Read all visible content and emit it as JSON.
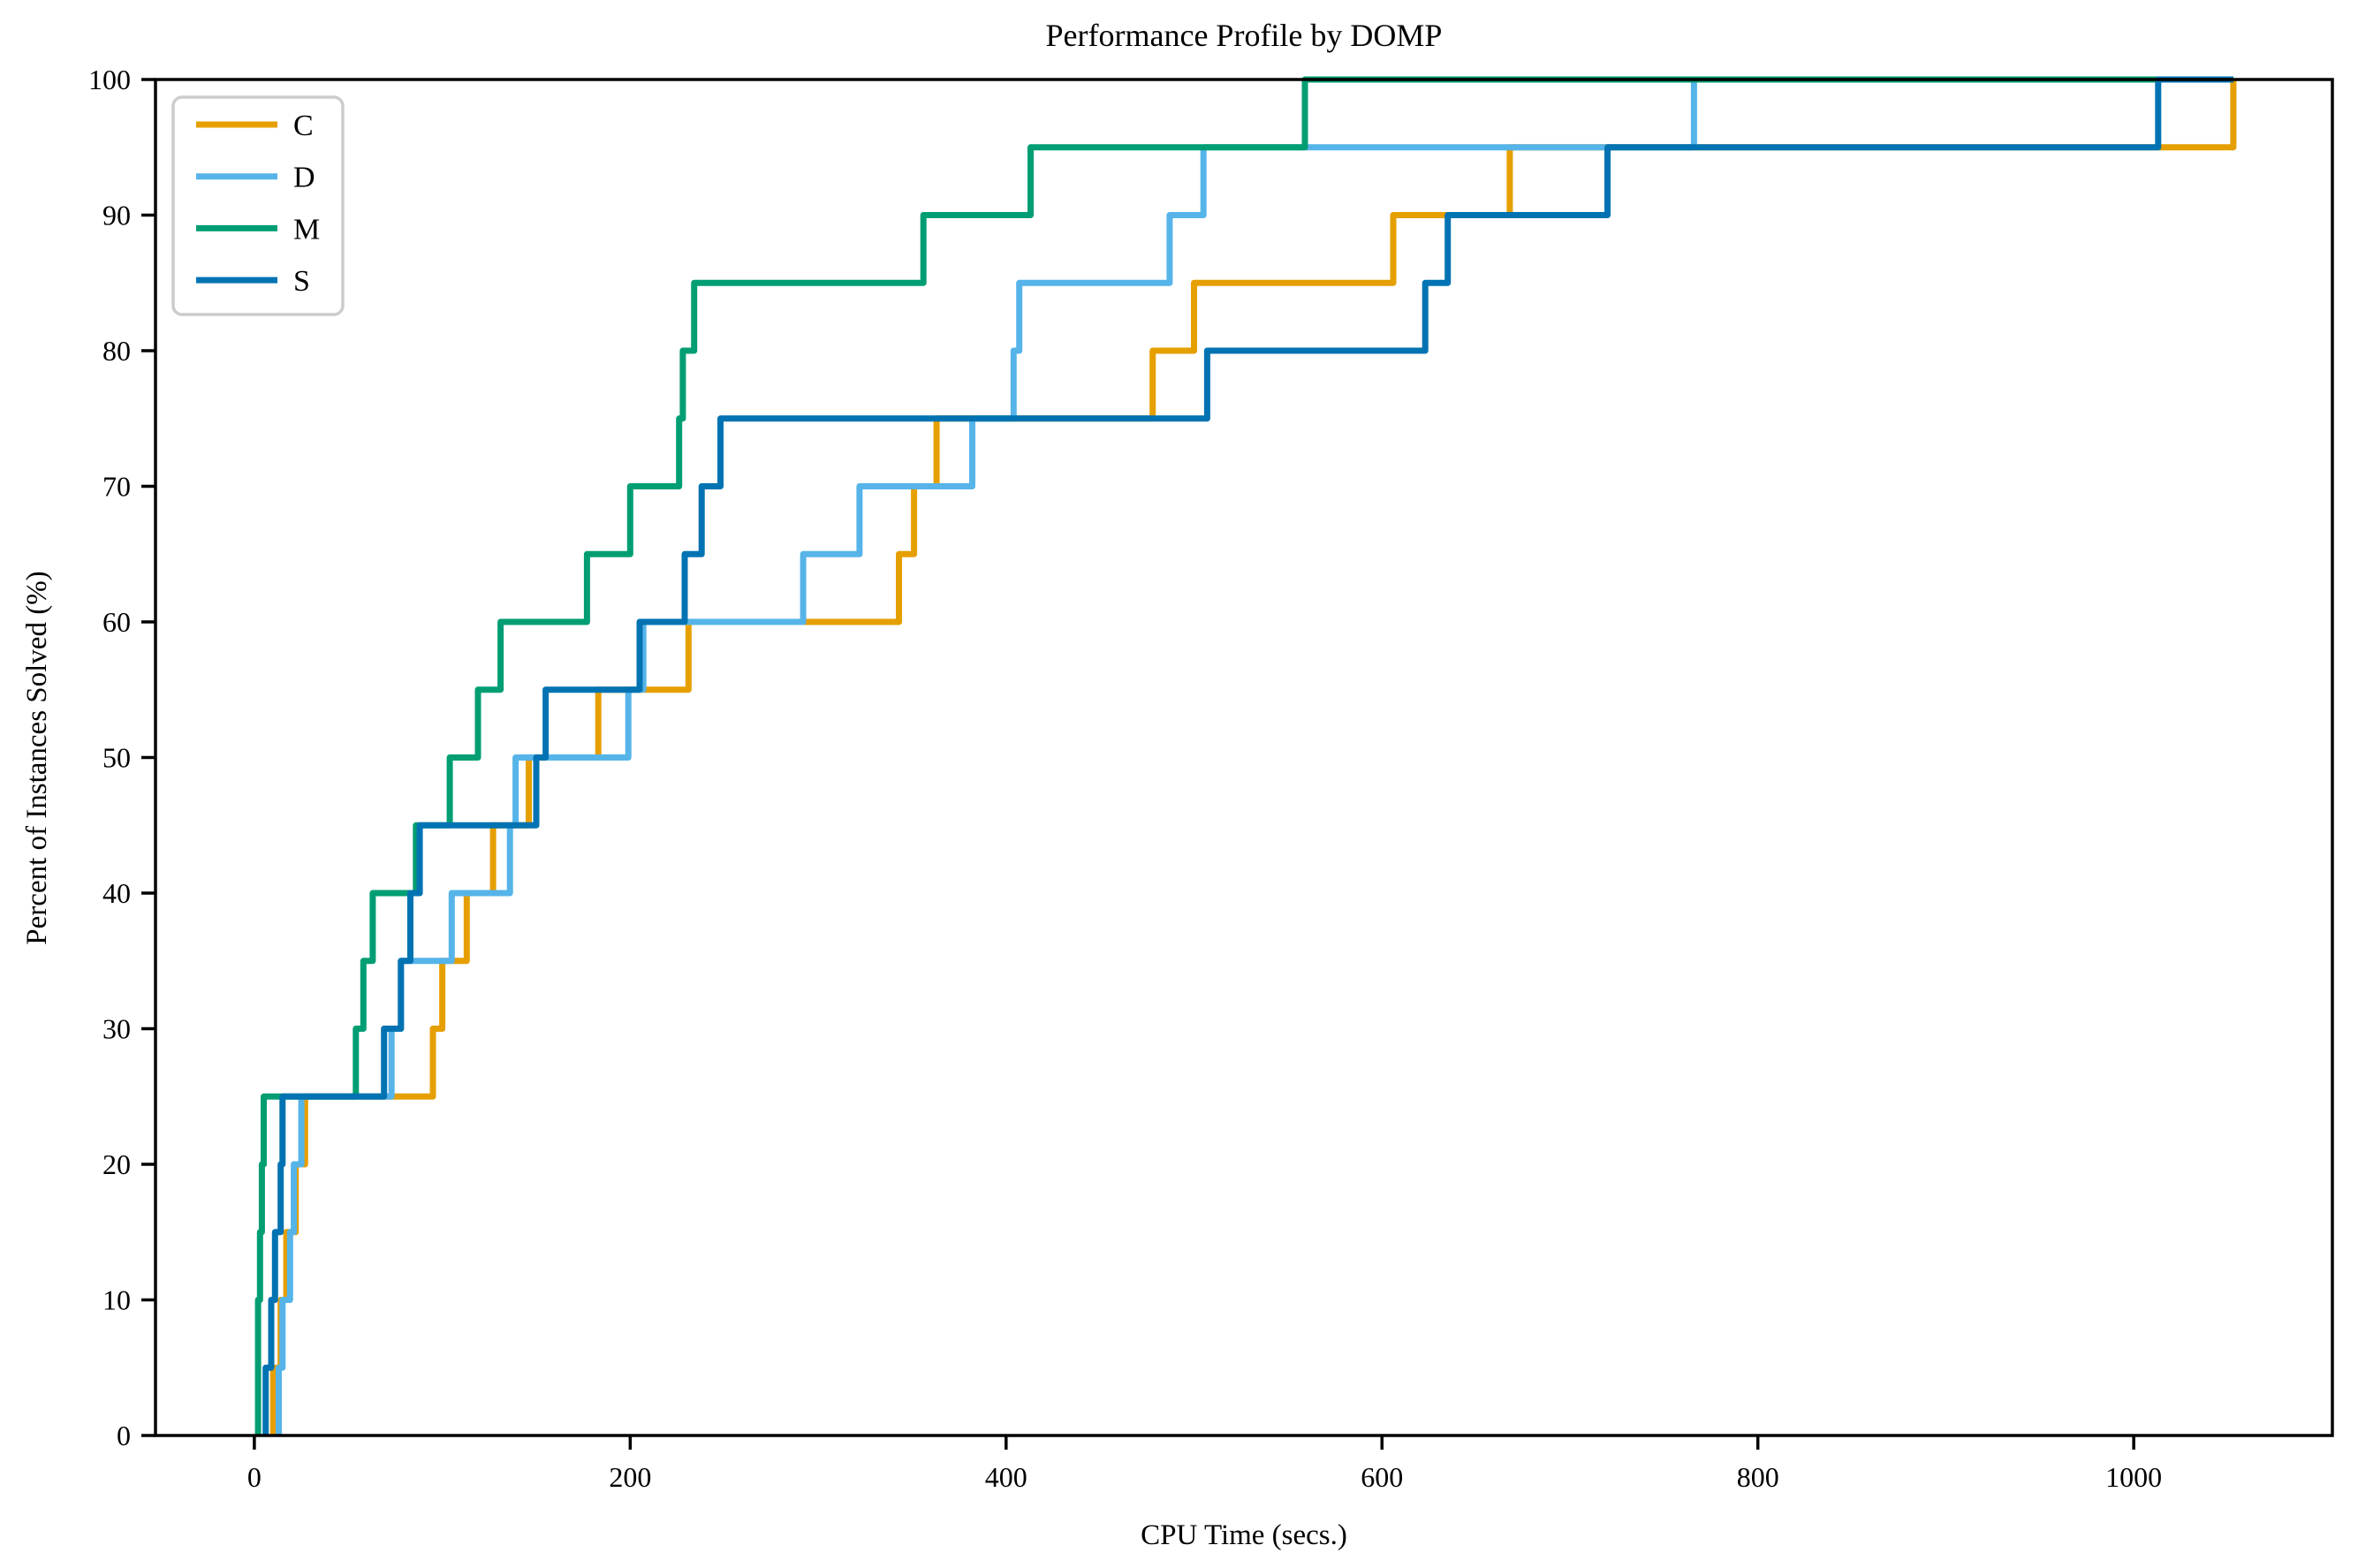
{
  "title": "Performance Profile by DOMP",
  "axes": {
    "xlabel": "CPU Time (secs.)",
    "ylabel": "Percent of Instances Solved (%)"
  },
  "legend": {
    "items": [
      {
        "label": "C"
      },
      {
        "label": "D"
      },
      {
        "label": "M"
      },
      {
        "label": "S"
      }
    ]
  },
  "chart_data": {
    "type": "line",
    "subtype": "step-performance-profile",
    "title": "Performance Profile by DOMP",
    "xlabel": "CPU Time (secs.)",
    "ylabel": "Percent of Instances Solved (%)",
    "xlim": [
      -52.6,
      1105.7
    ],
    "ylim": [
      0,
      100
    ],
    "grid": false,
    "legend_position": "upper-left",
    "x_ticks": [
      0,
      200,
      400,
      600,
      800,
      1000
    ],
    "y_ticks": [
      0,
      10,
      20,
      30,
      40,
      50,
      60,
      70,
      80,
      90,
      100
    ],
    "x_tick_labels": [
      "0",
      "200",
      "400",
      "600",
      "800",
      "1000"
    ],
    "y_tick_labels": [
      "0",
      "10",
      "20",
      "30",
      "40",
      "50",
      "60",
      "70",
      "80",
      "90",
      "100"
    ],
    "percent_levels": [
      5,
      10,
      15,
      20,
      25,
      30,
      35,
      40,
      45,
      50,
      55,
      60,
      65,
      70,
      75,
      80,
      85,
      90,
      95,
      100
    ],
    "x_end": 1053,
    "series": [
      {
        "name": "C",
        "color": "#E69F00",
        "solve_times": [
          10,
          14,
          17,
          22,
          27,
          95,
          100,
          113,
          127,
          146,
          183,
          231,
          343,
          351,
          363,
          478,
          500,
          606,
          668,
          1053
        ]
      },
      {
        "name": "D",
        "color": "#56B4E9",
        "solve_times": [
          13,
          15,
          19,
          21,
          25,
          73,
          78,
          105,
          136,
          139,
          199,
          207,
          292,
          322,
          382,
          404,
          407,
          487,
          505,
          766
        ]
      },
      {
        "name": "M",
        "color": "#029E73",
        "solve_times": [
          2,
          2,
          3,
          4,
          5,
          54,
          58,
          63,
          86,
          104,
          119,
          131,
          177,
          200,
          226,
          228,
          234,
          356,
          413,
          559
        ]
      },
      {
        "name": "S",
        "color": "#0173B2",
        "solve_times": [
          6,
          9,
          11,
          14,
          15,
          69,
          78,
          83,
          88,
          150,
          155,
          205,
          229,
          238,
          248,
          507,
          623,
          635,
          720,
          1013
        ]
      }
    ]
  }
}
